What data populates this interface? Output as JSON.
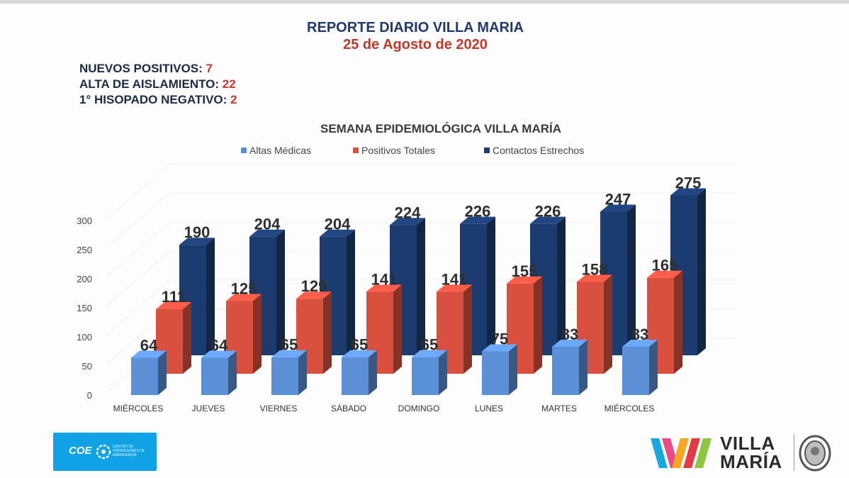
{
  "report": {
    "title": "REPORTE DIARIO VILLA MARIA",
    "date": "25 de Agosto de 2020"
  },
  "stats": [
    {
      "label": "NUEVOS POSITIVOS:",
      "value": "7"
    },
    {
      "label": "ALTA DE AISLAMIENTO:",
      "value": "22"
    },
    {
      "label": "1° HISOPADO NEGATIVO:",
      "value": "2"
    }
  ],
  "chart_data": {
    "type": "bar",
    "title": "SEMANA EPIDEMIOLÓGICA VILLA MARÍA",
    "categories": [
      "MIÉRCOLES",
      "JUEVES",
      "VIERNES",
      "SÁBADO",
      "DOMINGO",
      "LUNES",
      "MARTES",
      "MIÉRCOLES"
    ],
    "series": [
      {
        "name": "Altas Médicas",
        "color": "#5b8fd6",
        "values": [
          64,
          64,
          65,
          65,
          65,
          75,
          83,
          83
        ]
      },
      {
        "name": "Positivos Totales",
        "color": "#d9503f",
        "values": [
          111,
          125,
          129,
          141,
          141,
          155,
          158,
          165
        ]
      },
      {
        "name": "Contactos Estrechos",
        "color": "#1c3b6e",
        "values": [
          190,
          204,
          204,
          224,
          226,
          226,
          247,
          275
        ]
      }
    ],
    "yticks": [
      0,
      50,
      100,
      150,
      200,
      250,
      300
    ],
    "ylim": [
      0,
      300
    ],
    "legend_position": "top",
    "three_d": true
  },
  "footer": {
    "coe_logo_text": "COE",
    "coe_logo_subtext": "CENTRO DE OPERACIONES DE EMERGENCIA",
    "brand_line1": "VILLA",
    "brand_line2": "MARÍA"
  },
  "colors": {
    "title_blue": "#1f3a6b",
    "accent_red": "#c0392b",
    "logo_blue": "#0fa3e6"
  }
}
